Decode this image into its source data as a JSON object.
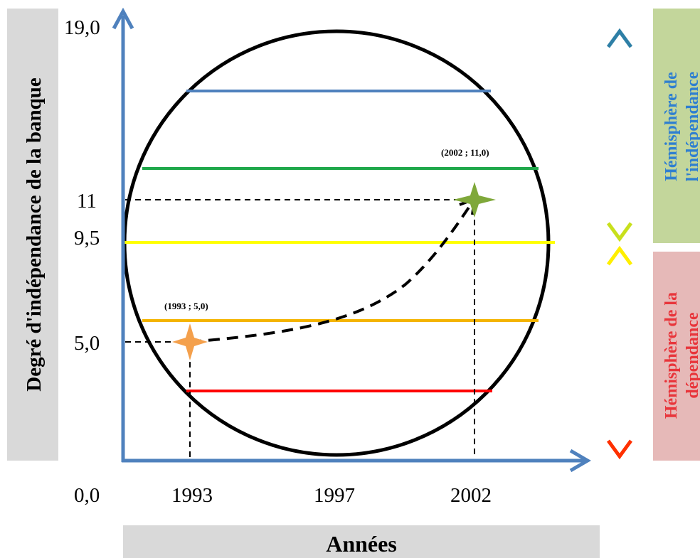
{
  "y_axis_title": "Degré d'indépendance de la banque",
  "x_axis_title": "Années",
  "y_ticks": [
    "19,0",
    "11",
    "9,5",
    "5,0"
  ],
  "origin_label": "0,0",
  "x_ticks": [
    "1993",
    "1997",
    "2002"
  ],
  "points": [
    {
      "label": "(1993 ; 5,0)",
      "year": 1993,
      "value": 5.0,
      "color": "#f4a04c"
    },
    {
      "label": "(2002 ; 11,0)",
      "year": 2002,
      "value": 11.0,
      "color": "#7fa83a"
    }
  ],
  "bands": [
    {
      "name": "blue",
      "color": "#4f81bd"
    },
    {
      "name": "green",
      "color": "#1fa84a"
    },
    {
      "name": "yellow",
      "color": "#ffff00"
    },
    {
      "name": "orange",
      "color": "#f4b400"
    },
    {
      "name": "red",
      "color": "#ff0000"
    }
  ],
  "hemisphere_independence": {
    "line1": "Hémisphère de",
    "line2": "l'indépendance"
  },
  "hemisphere_dependence": {
    "line1": "Hémisphère de la",
    "line2": "dépendance"
  },
  "colors": {
    "axis": "#4f81bd",
    "panel_gray": "#d9d9d9",
    "panel_green": "#c3d69b",
    "panel_pink": "#e6b9b8"
  }
}
